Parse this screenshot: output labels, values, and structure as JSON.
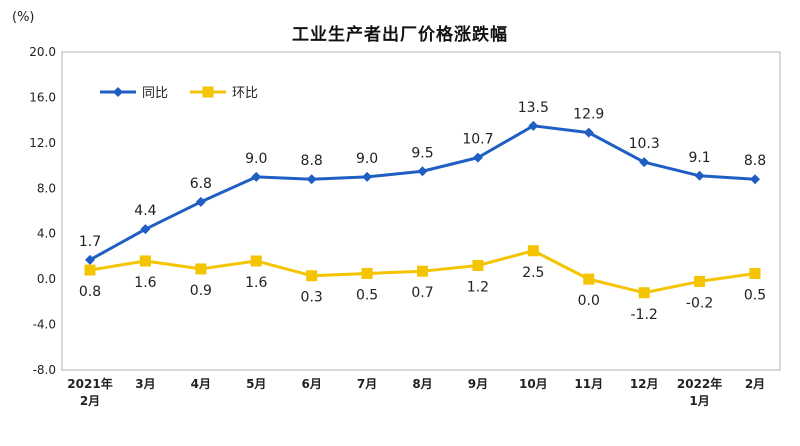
{
  "unit_label": "(%)",
  "chart_data": {
    "type": "line",
    "title": "工业生产者出厂价格涨跌幅",
    "categories": [
      [
        "2021年",
        "2月"
      ],
      [
        "3月"
      ],
      [
        "4月"
      ],
      [
        "5月"
      ],
      [
        "6月"
      ],
      [
        "7月"
      ],
      [
        "8月"
      ],
      [
        "9月"
      ],
      [
        "10月"
      ],
      [
        "11月"
      ],
      [
        "12月"
      ],
      [
        "2022年",
        "1月"
      ],
      [
        "2月"
      ]
    ],
    "series": [
      {
        "name": "同比",
        "color": "#1F5FC4",
        "marker": "diamond",
        "values": [
          1.7,
          4.4,
          6.8,
          9.0,
          8.8,
          9.0,
          9.5,
          10.7,
          13.5,
          12.9,
          10.3,
          9.1,
          8.8
        ]
      },
      {
        "name": "环比",
        "color": "#F5C400",
        "marker": "square",
        "values": [
          0.8,
          1.6,
          0.9,
          1.6,
          0.3,
          0.5,
          0.7,
          1.2,
          2.5,
          0.0,
          -1.2,
          -0.2,
          0.5
        ]
      }
    ],
    "ylim": [
      -8.0,
      20.0
    ],
    "yticks": [
      "20.0",
      "16.0",
      "12.0",
      "8.0",
      "4.0",
      "0.0",
      "-4.0",
      "-8.0"
    ],
    "grid": false,
    "legend_position": "top-left"
  }
}
